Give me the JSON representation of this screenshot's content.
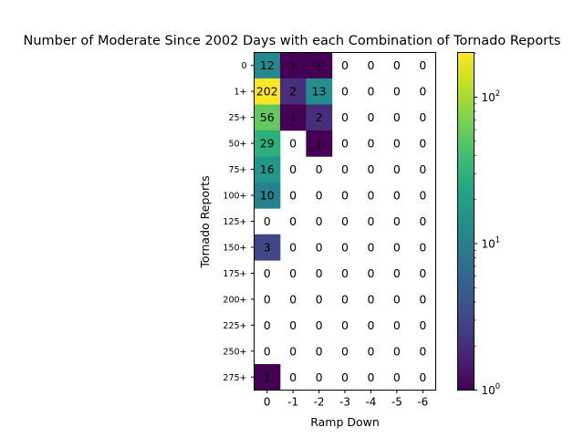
{
  "chart_data": {
    "type": "heatmap",
    "title": "Number of Moderate Since 2002 Days with each Combination of Tornado Reports",
    "xlabel": "Ramp Down",
    "ylabel": "Tornado Reports",
    "x_categories": [
      "0",
      "-1",
      "-2",
      "-3",
      "-4",
      "-5",
      "-6"
    ],
    "y_categories": [
      "0",
      "1+",
      "25+",
      "50+",
      "75+",
      "100+",
      "125+",
      "150+",
      "175+",
      "200+",
      "225+",
      "250+",
      "275+"
    ],
    "values": [
      [
        12,
        1,
        1,
        0,
        0,
        0,
        0
      ],
      [
        202,
        2,
        13,
        0,
        0,
        0,
        0
      ],
      [
        56,
        1,
        2,
        0,
        0,
        0,
        0
      ],
      [
        29,
        0,
        1,
        0,
        0,
        0,
        0
      ],
      [
        16,
        0,
        0,
        0,
        0,
        0,
        0
      ],
      [
        10,
        0,
        0,
        0,
        0,
        0,
        0
      ],
      [
        0,
        0,
        0,
        0,
        0,
        0,
        0
      ],
      [
        3,
        0,
        0,
        0,
        0,
        0,
        0
      ],
      [
        0,
        0,
        0,
        0,
        0,
        0,
        0
      ],
      [
        0,
        0,
        0,
        0,
        0,
        0,
        0
      ],
      [
        0,
        0,
        0,
        0,
        0,
        0,
        0
      ],
      [
        0,
        0,
        0,
        0,
        0,
        0,
        0
      ],
      [
        1,
        0,
        0,
        0,
        0,
        0,
        0
      ]
    ],
    "zero_cells": "blank",
    "colorbar": {
      "scale": "log",
      "colormap": "viridis",
      "range": [
        1,
        202
      ],
      "ticks": [
        {
          "base": "10",
          "exp": "0",
          "value": 1
        },
        {
          "base": "10",
          "exp": "1",
          "value": 10
        },
        {
          "base": "10",
          "exp": "2",
          "value": 100
        }
      ]
    },
    "grid": false,
    "legend": "colorbar-right"
  }
}
